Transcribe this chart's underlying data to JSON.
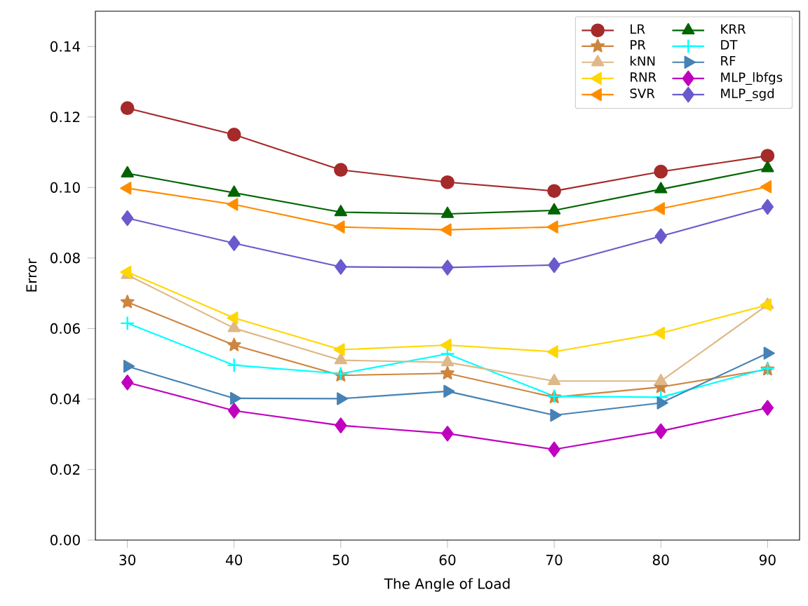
{
  "chart_data": {
    "type": "line",
    "xlabel": "The Angle of Load",
    "ylabel": "Error",
    "x": [
      30,
      40,
      50,
      60,
      70,
      80,
      90
    ],
    "xlim": [
      27,
      93
    ],
    "xticks": [
      30,
      40,
      50,
      60,
      70,
      80,
      90
    ],
    "ylim": [
      0,
      0.15
    ],
    "yticks": [
      {
        "value": 0,
        "label": "0.00"
      },
      {
        "value": 0.02,
        "label": "0.02"
      },
      {
        "value": 0.04,
        "label": "0.04"
      },
      {
        "value": 0.06,
        "label": "0.06"
      },
      {
        "value": 0.08,
        "label": "0.08"
      },
      {
        "value": 0.1,
        "label": "0.10"
      },
      {
        "value": 0.12,
        "label": "0.12"
      },
      {
        "value": 0.14,
        "label": "0.14"
      }
    ],
    "grid": false,
    "legend": "top right",
    "line_style": "solid",
    "series": [
      {
        "name": "LR",
        "color": "#a52a2a",
        "marker": "circle",
        "values": [
          0.1225,
          0.115,
          0.105,
          0.1015,
          0.099,
          0.1045,
          0.109
        ]
      },
      {
        "name": "PR",
        "color": "#cd853f",
        "marker": "star",
        "values": [
          0.0675,
          0.0553,
          0.0467,
          0.0473,
          0.0405,
          0.0434,
          0.0484
        ]
      },
      {
        "name": "kNN",
        "color": "#deb887",
        "marker": "triangle",
        "values": [
          0.0752,
          0.0601,
          0.051,
          0.0504,
          0.0451,
          0.0451,
          0.0667
        ]
      },
      {
        "name": "RNR",
        "color": "#ffd700",
        "marker": "triangle-left",
        "values": [
          0.076,
          0.063,
          0.054,
          0.0553,
          0.0534,
          0.0587,
          0.0667
        ]
      },
      {
        "name": "SVR",
        "color": "#ff8c00",
        "marker": "triangle-left",
        "values": [
          0.0998,
          0.0952,
          0.0888,
          0.088,
          0.0888,
          0.094,
          0.1002
        ]
      },
      {
        "name": "KRR",
        "color": "#006400",
        "marker": "triangle",
        "values": [
          0.104,
          0.0985,
          0.093,
          0.0925,
          0.0935,
          0.0995,
          0.1055
        ]
      },
      {
        "name": "DT",
        "color": "#00ffff",
        "marker": "cross",
        "values": [
          0.0615,
          0.0496,
          0.0472,
          0.0528,
          0.0408,
          0.0405,
          0.0487
        ]
      },
      {
        "name": "RF",
        "color": "#4682b4",
        "marker": "triangle-right",
        "values": [
          0.0493,
          0.0402,
          0.0401,
          0.0422,
          0.0354,
          0.0389,
          0.053
        ]
      },
      {
        "name": "MLP_lbfgs",
        "color": "#bf00bf",
        "marker": "diamond",
        "values": [
          0.0447,
          0.0367,
          0.0325,
          0.0302,
          0.0257,
          0.0309,
          0.0375
        ]
      },
      {
        "name": "MLP_sgd",
        "color": "#6a5acd",
        "marker": "diamond",
        "values": [
          0.0913,
          0.0842,
          0.0775,
          0.0773,
          0.078,
          0.0862,
          0.0945
        ]
      }
    ]
  }
}
